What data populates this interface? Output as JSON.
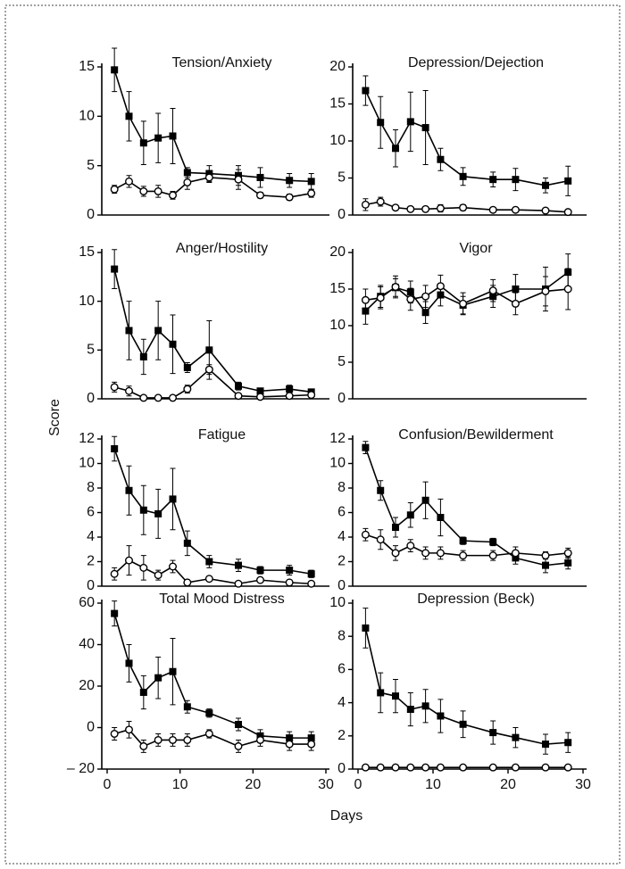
{
  "ylabel": "Score",
  "xlabel": "Days",
  "chart_data": [
    {
      "type": "line",
      "title": "Tension/Anxiety",
      "xlim": [
        0,
        30
      ],
      "ylim": [
        0,
        15
      ],
      "yticks": [
        0,
        5,
        10,
        15
      ],
      "x": [
        1,
        3,
        5,
        7,
        9,
        11,
        14,
        18,
        21,
        25,
        28
      ],
      "series": [
        {
          "color": "#000000",
          "marker": "filled",
          "values": [
            14.7,
            10,
            7.3,
            7.8,
            8,
            4.3,
            4.2,
            4,
            3.8,
            3.5,
            3.4
          ],
          "errors": [
            2.2,
            2.5,
            2.2,
            2.5,
            2.8,
            0.5,
            0.8,
            1,
            1,
            0.7,
            0.8
          ]
        },
        {
          "color": "#000000",
          "marker": "open",
          "values": [
            2.6,
            3.4,
            2.4,
            2.4,
            2,
            3.3,
            3.8,
            3.6,
            2,
            1.8,
            2.2
          ],
          "errors": [
            0.4,
            0.6,
            0.5,
            0.6,
            0.4,
            0.7,
            0.5,
            1,
            0.3,
            0.3,
            0.4
          ]
        }
      ]
    },
    {
      "type": "line",
      "title": "Depression/Dejection",
      "xlim": [
        0,
        30
      ],
      "ylim": [
        0,
        20
      ],
      "yticks": [
        0,
        5,
        10,
        15,
        20
      ],
      "x": [
        1,
        3,
        5,
        7,
        9,
        11,
        14,
        18,
        21,
        25,
        28
      ],
      "series": [
        {
          "color": "#000000",
          "marker": "filled",
          "values": [
            16.8,
            12.5,
            9,
            12.6,
            11.8,
            7.5,
            5.2,
            4.8,
            4.8,
            4,
            4.6
          ],
          "errors": [
            2,
            3.5,
            2.5,
            4,
            5,
            1.5,
            1.2,
            1,
            1.5,
            1,
            2
          ]
        },
        {
          "color": "#000000",
          "marker": "open",
          "values": [
            1.4,
            1.8,
            1,
            0.8,
            0.8,
            0.9,
            1,
            0.7,
            0.7,
            0.6,
            0.4
          ],
          "errors": [
            0.8,
            0.6,
            0.3,
            0.2,
            0.3,
            0.5,
            0.4,
            0.2,
            0.2,
            0.2,
            0.1
          ]
        }
      ]
    },
    {
      "type": "line",
      "title": "Anger/Hostility",
      "xlim": [
        0,
        30
      ],
      "ylim": [
        0,
        15
      ],
      "yticks": [
        0,
        5,
        10,
        15
      ],
      "x": [
        1,
        3,
        5,
        7,
        9,
        11,
        14,
        18,
        21,
        25,
        28
      ],
      "series": [
        {
          "color": "#000000",
          "marker": "filled",
          "values": [
            13.3,
            7,
            4.3,
            7,
            5.6,
            3.2,
            5,
            1.3,
            0.8,
            1,
            0.7
          ],
          "errors": [
            2,
            3,
            1.8,
            3,
            3,
            0.5,
            3,
            0.4,
            0.3,
            0.4,
            0.3
          ]
        },
        {
          "color": "#000000",
          "marker": "open",
          "values": [
            1.2,
            0.8,
            0.1,
            0.1,
            0.1,
            1,
            3,
            0.3,
            0.2,
            0.3,
            0.4
          ],
          "errors": [
            0.5,
            0.5,
            0.1,
            0.1,
            0.1,
            0.4,
            0.5,
            0.2,
            0.1,
            0.2,
            0.2
          ]
        }
      ]
    },
    {
      "type": "line",
      "title": "Vigor",
      "xlim": [
        0,
        30
      ],
      "ylim": [
        0,
        20
      ],
      "yticks": [
        0,
        5,
        10,
        15,
        20
      ],
      "x": [
        1,
        3,
        5,
        7,
        9,
        11,
        14,
        18,
        21,
        25,
        28
      ],
      "series": [
        {
          "color": "#000000",
          "marker": "filled",
          "values": [
            12,
            14,
            15.2,
            14.6,
            11.8,
            14.2,
            12.8,
            14,
            15,
            15,
            17.3
          ],
          "errors": [
            1.8,
            1.5,
            1.2,
            1.5,
            1.5,
            1.5,
            1.2,
            1.5,
            2,
            3,
            2.5
          ]
        },
        {
          "color": "#000000",
          "marker": "open",
          "values": [
            13.5,
            13.8,
            15.3,
            13.6,
            14,
            15.4,
            13,
            14.8,
            13,
            14.7,
            15
          ],
          "errors": [
            1.5,
            1.5,
            1.5,
            1.5,
            1.5,
            1.5,
            1.5,
            1.5,
            1.5,
            2,
            2.8
          ]
        }
      ]
    },
    {
      "type": "line",
      "title": "Fatigue",
      "xlim": [
        0,
        30
      ],
      "ylim": [
        0,
        12
      ],
      "yticks": [
        0,
        2,
        4,
        6,
        8,
        10,
        12
      ],
      "x": [
        1,
        3,
        5,
        7,
        9,
        11,
        14,
        18,
        21,
        25,
        28
      ],
      "series": [
        {
          "color": "#000000",
          "marker": "filled",
          "values": [
            11.2,
            7.8,
            6.2,
            5.9,
            7.1,
            3.5,
            2,
            1.7,
            1.3,
            1.3,
            1
          ],
          "errors": [
            1,
            2,
            2,
            2,
            2.5,
            1,
            0.5,
            0.5,
            0.3,
            0.4,
            0.3
          ]
        },
        {
          "color": "#000000",
          "marker": "open",
          "values": [
            1,
            2.1,
            1.5,
            0.9,
            1.6,
            0.3,
            0.6,
            0.2,
            0.5,
            0.3,
            0.2
          ],
          "errors": [
            0.5,
            1.2,
            1,
            0.4,
            0.5,
            0.2,
            0.2,
            0.2,
            0.2,
            0.2,
            0.2
          ]
        }
      ]
    },
    {
      "type": "line",
      "title": "Confusion/Bewilderment",
      "xlim": [
        0,
        30
      ],
      "ylim": [
        0,
        12
      ],
      "yticks": [
        0,
        2,
        4,
        6,
        8,
        10,
        12
      ],
      "x": [
        1,
        3,
        5,
        7,
        9,
        11,
        14,
        18,
        21,
        25,
        28
      ],
      "series": [
        {
          "color": "#000000",
          "marker": "filled",
          "values": [
            11.3,
            7.8,
            4.8,
            5.8,
            7,
            5.6,
            3.7,
            3.6,
            2.3,
            1.7,
            1.9
          ],
          "errors": [
            0.5,
            0.8,
            0.8,
            1,
            1.5,
            1.5,
            0.3,
            0.3,
            0.5,
            0.6,
            0.5
          ]
        },
        {
          "color": "#000000",
          "marker": "open",
          "values": [
            4.2,
            3.8,
            2.7,
            3.3,
            2.7,
            2.7,
            2.5,
            2.5,
            2.7,
            2.5,
            2.7
          ],
          "errors": [
            0.5,
            0.8,
            0.6,
            0.5,
            0.5,
            0.5,
            0.4,
            0.4,
            0.5,
            0.3,
            0.4
          ]
        }
      ]
    },
    {
      "type": "line",
      "title": "Total Mood Distress",
      "xlim": [
        0,
        30
      ],
      "ylim": [
        -20,
        60
      ],
      "xticks": [
        0,
        10,
        20,
        30
      ],
      "yticks": [
        {
          "value": -20,
          "label": "– 20"
        },
        0,
        20,
        40,
        60
      ],
      "x": [
        1,
        3,
        5,
        7,
        9,
        11,
        14,
        18,
        21,
        25,
        28
      ],
      "series": [
        {
          "color": "#000000",
          "marker": "filled",
          "values": [
            55,
            31,
            17,
            24,
            27,
            10,
            7,
            1.5,
            -4,
            -5,
            -5
          ],
          "errors": [
            6,
            9,
            8,
            10,
            16,
            3,
            2,
            3,
            3,
            3,
            3
          ]
        },
        {
          "color": "#000000",
          "marker": "open",
          "values": [
            -3,
            -1,
            -9,
            -6,
            -6,
            -6,
            -3,
            -9,
            -6,
            -8,
            -8
          ],
          "errors": [
            3,
            4,
            3,
            3,
            3,
            3,
            2,
            3,
            3,
            3,
            3
          ]
        }
      ]
    },
    {
      "type": "line",
      "title": "Depression (Beck)",
      "xlim": [
        0,
        30
      ],
      "ylim": [
        0,
        10
      ],
      "xticks": [
        0,
        10,
        20,
        30
      ],
      "yticks": [
        0,
        2,
        4,
        6,
        8,
        10
      ],
      "x": [
        1,
        3,
        5,
        7,
        9,
        11,
        14,
        18,
        21,
        25,
        28
      ],
      "series": [
        {
          "color": "#000000",
          "marker": "filled",
          "values": [
            8.5,
            4.6,
            4.4,
            3.6,
            3.8,
            3.2,
            2.7,
            2.2,
            1.9,
            1.5,
            1.6
          ],
          "errors": [
            1.2,
            1.2,
            1,
            1,
            1,
            1,
            0.8,
            0.7,
            0.6,
            0.6,
            0.6
          ]
        },
        {
          "color": "#000000",
          "marker": "open",
          "values": [
            0.1,
            0.1,
            0.1,
            0.1,
            0.1,
            0.1,
            0.1,
            0.1,
            0.1,
            0.1,
            0.1
          ],
          "errors": [
            0,
            0,
            0,
            0,
            0,
            0,
            0,
            0,
            0,
            0,
            0
          ]
        }
      ]
    }
  ]
}
